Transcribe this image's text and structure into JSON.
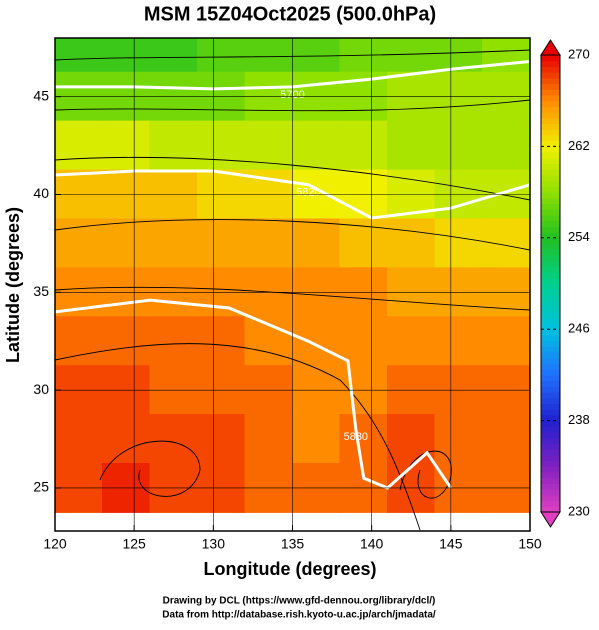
{
  "chart_data": {
    "type": "heatmap",
    "title": "MSM 15Z04Oct2025 (500.0hPa)",
    "xlabel": "Longitude (degrees)",
    "ylabel": "Latitude  (degrees)",
    "xlim": [
      120,
      150
    ],
    "ylim": [
      22.8,
      48
    ],
    "xticks": [
      120,
      125,
      130,
      135,
      140,
      145,
      150
    ],
    "yticks": [
      25,
      30,
      35,
      40,
      45
    ],
    "grid": true,
    "field": {
      "lon": [
        121.5,
        124.5,
        127.5,
        130.5,
        133.5,
        136.5,
        139.5,
        142.5,
        145.5,
        148.5
      ],
      "lat": [
        47.5,
        45,
        42.5,
        40,
        37.5,
        35,
        32.5,
        30,
        27.5,
        25
      ],
      "values": [
        [
          255,
          255,
          255,
          256,
          256,
          256,
          257,
          257,
          257,
          258
        ],
        [
          257,
          257,
          257,
          257,
          258,
          258,
          258,
          259,
          259,
          259
        ],
        [
          261,
          261,
          260,
          260,
          260,
          260,
          260,
          259,
          259,
          259
        ],
        [
          264,
          264,
          264,
          263,
          263,
          262,
          262,
          261,
          260,
          260
        ],
        [
          265,
          265,
          265,
          265,
          265,
          265,
          264,
          264,
          263,
          263
        ],
        [
          266,
          266,
          266,
          266,
          266,
          266,
          266,
          265,
          265,
          265
        ],
        [
          267,
          267,
          267,
          267,
          266,
          266,
          266,
          266,
          266,
          266
        ],
        [
          268,
          268,
          267,
          267,
          267,
          266,
          266,
          267,
          267,
          267
        ],
        [
          268,
          268,
          268,
          268,
          267,
          266,
          267,
          268,
          267,
          267
        ],
        [
          268,
          269,
          268,
          268,
          267,
          267,
          267,
          268,
          267,
          267
        ]
      ]
    },
    "contours": [
      {
        "label": "5700",
        "lon": [
          120,
          125,
          130,
          135,
          140,
          145,
          150
        ],
        "lat": [
          45.5,
          45.5,
          45.4,
          45.5,
          45.9,
          46.4,
          46.8
        ]
      },
      {
        "label": "5820",
        "lon": [
          120,
          125,
          130,
          136,
          140,
          145,
          150
        ],
        "lat": [
          41,
          41.2,
          41.2,
          40.5,
          38.8,
          39.3,
          40.5
        ]
      },
      {
        "label": "5880",
        "lon": [
          120,
          126,
          131,
          136,
          138.5,
          139,
          139.5,
          141,
          143.5,
          145
        ],
        "lat": [
          34,
          34.6,
          34.2,
          32.5,
          31.5,
          28,
          25.5,
          25,
          26.8,
          25
        ]
      }
    ],
    "colorbar": {
      "clim": [
        230,
        270
      ],
      "ticks": [
        230,
        238,
        246,
        254,
        262,
        270
      ],
      "colors": [
        "#e040c0",
        "#8020c0",
        "#2020d0",
        "#2070ff",
        "#00c0e0",
        "#00d090",
        "#20c020",
        "#90e000",
        "#f0f000",
        "#ff8c00",
        "#e80000"
      ]
    },
    "credits": [
      "Drawing by DCL (https://www.gfd-dennou.org/library/dcl/)",
      "Data from http://database.rish.kyoto-u.ac.jp/arch/jmadata/"
    ]
  }
}
